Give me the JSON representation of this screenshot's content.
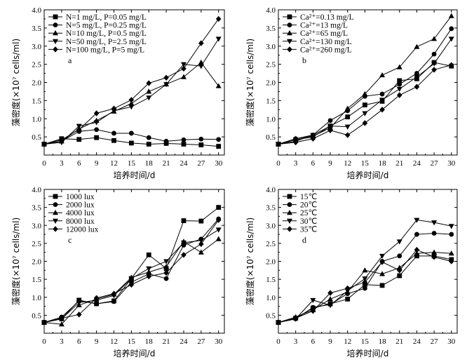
{
  "chart_data": [
    {
      "type": "line",
      "panel_label": "a",
      "xlabel": "培养时间/d",
      "ylabel": "藻密度(×10⁷ cells/ml)",
      "xlim": [
        0,
        31
      ],
      "ylim": [
        0,
        4.0
      ],
      "xticks": [
        "0",
        "3",
        "6",
        "9",
        "12",
        "15",
        "18",
        "21",
        "24",
        "27",
        "30"
      ],
      "yticks": [
        "0.5",
        "1.0",
        "1.5",
        "2.0",
        "2.5",
        "3.0",
        "3.5",
        "4.0"
      ],
      "legend_position": "top-left",
      "x": [
        0,
        3,
        6,
        9,
        12,
        15,
        18,
        21,
        24,
        27,
        30
      ],
      "series": [
        {
          "name": "N=1 mg/L, P=0.05 mg/L",
          "marker": "square",
          "values": [
            0.3,
            0.45,
            0.43,
            0.48,
            0.4,
            0.33,
            0.3,
            0.32,
            0.3,
            0.28,
            0.24
          ]
        },
        {
          "name": "N=5 mg/L, P=0.25 mg/L",
          "marker": "circle",
          "values": [
            0.3,
            0.38,
            0.65,
            0.7,
            0.6,
            0.6,
            0.48,
            0.38,
            0.42,
            0.44,
            0.43
          ]
        },
        {
          "name": "N=10 mg/L, P=0.5 mg/L",
          "marker": "triangle-up",
          "values": [
            0.3,
            0.38,
            0.72,
            0.95,
            1.2,
            1.42,
            1.75,
            1.95,
            2.15,
            2.55,
            1.9
          ]
        },
        {
          "name": "N=50 mg/L, P=2.5 mg/L",
          "marker": "triangle-down",
          "values": [
            0.3,
            0.35,
            0.8,
            0.9,
            1.22,
            1.33,
            1.58,
            1.95,
            2.5,
            2.45,
            3.2
          ]
        },
        {
          "name": "N=100 mg/L, P=5 mg/L",
          "marker": "diamond",
          "values": [
            0.3,
            0.42,
            0.7,
            1.15,
            1.28,
            1.52,
            1.98,
            2.13,
            2.38,
            3.08,
            3.75
          ]
        }
      ]
    },
    {
      "type": "line",
      "panel_label": "b",
      "xlabel": "培养时间/d",
      "ylabel": "藻密度(×10⁷ cells/ml)",
      "xlim": [
        0,
        31
      ],
      "ylim": [
        0,
        4.0
      ],
      "xticks": [
        "0",
        "3",
        "6",
        "9",
        "12",
        "15",
        "18",
        "21",
        "24",
        "27",
        "30"
      ],
      "yticks": [
        "0.5",
        "1.0",
        "1.5",
        "2.0",
        "2.5",
        "3.0",
        "3.5",
        "4.0"
      ],
      "legend_position": "top-left",
      "x": [
        0,
        3,
        6,
        9,
        12,
        15,
        18,
        21,
        24,
        27,
        30
      ],
      "series": [
        {
          "name": "Ca²⁺=0.13 mg/L",
          "marker": "square",
          "values": [
            0.3,
            0.42,
            0.5,
            0.8,
            1.05,
            1.38,
            1.48,
            2.05,
            2.1,
            2.55,
            2.45
          ]
        },
        {
          "name": "Ca²⁺=13 mg/L",
          "marker": "circle",
          "values": [
            0.3,
            0.45,
            0.55,
            0.95,
            1.22,
            1.62,
            1.68,
            1.95,
            2.25,
            2.78,
            3.48
          ]
        },
        {
          "name": "Ca²⁺=65 mg/L",
          "marker": "triangle-up",
          "values": [
            0.3,
            0.45,
            0.52,
            0.75,
            1.28,
            1.68,
            2.2,
            2.42,
            2.98,
            3.2,
            3.83
          ]
        },
        {
          "name": "Ca²⁺=130 mg/L",
          "marker": "triangle-down",
          "values": [
            0.3,
            0.38,
            0.55,
            0.8,
            0.78,
            1.15,
            1.52,
            1.82,
            2.15,
            2.52,
            3.2
          ]
        },
        {
          "name": "Ca²⁺=260 mg/L",
          "marker": "diamond",
          "values": [
            0.3,
            0.35,
            0.45,
            0.68,
            0.55,
            0.88,
            1.25,
            1.65,
            1.88,
            2.35,
            2.48
          ]
        }
      ]
    },
    {
      "type": "line",
      "panel_label": "c",
      "xlabel": "培养时间/d",
      "ylabel": "藻密度(×10⁷ cells/ml)",
      "xlim": [
        0,
        31
      ],
      "ylim": [
        0,
        4.0
      ],
      "xticks": [
        "0",
        "3",
        "6",
        "9",
        "12",
        "15",
        "18",
        "21",
        "24",
        "27",
        "30"
      ],
      "yticks": [
        "0.5",
        "1.0",
        "1.5",
        "2.0",
        "2.5",
        "3.0",
        "3.5",
        "4.0"
      ],
      "legend_position": "top-left",
      "x": [
        0,
        3,
        6,
        9,
        12,
        15,
        18,
        21,
        24,
        27,
        30
      ],
      "series": [
        {
          "name": "1000 lux",
          "marker": "square",
          "values": [
            0.3,
            0.4,
            0.92,
            0.82,
            0.9,
            1.52,
            2.18,
            1.8,
            3.13,
            3.12,
            3.5
          ]
        },
        {
          "name": "2000 lux",
          "marker": "circle",
          "values": [
            0.3,
            0.45,
            0.9,
            0.82,
            0.88,
            1.42,
            1.65,
            1.52,
            2.45,
            2.62,
            3.18
          ]
        },
        {
          "name": "4000 lux",
          "marker": "triangle-up",
          "values": [
            0.3,
            0.25,
            0.78,
            0.95,
            1.08,
            1.55,
            1.7,
            1.85,
            2.55,
            2.25,
            2.62
          ]
        },
        {
          "name": "8000 lux",
          "marker": "triangle-down",
          "values": [
            0.3,
            0.4,
            0.85,
            0.92,
            1.05,
            1.52,
            1.8,
            2.0,
            2.52,
            2.58,
            2.88
          ]
        },
        {
          "name": "12000 lux",
          "marker": "diamond",
          "values": [
            0.3,
            0.42,
            0.52,
            0.98,
            1.1,
            1.35,
            1.58,
            1.68,
            2.18,
            2.48,
            3.15
          ]
        }
      ]
    },
    {
      "type": "line",
      "panel_label": "d",
      "xlabel": "培养时间/d",
      "ylabel": "藻密度(×10⁷ cells/ml)",
      "xlim": [
        0,
        31
      ],
      "ylim": [
        0,
        4.0
      ],
      "xticks": [
        "0",
        "3",
        "6",
        "9",
        "12",
        "15",
        "18",
        "21",
        "24",
        "27",
        "30"
      ],
      "yticks": [
        "0.5",
        "1.0",
        "1.5",
        "2.0",
        "2.5",
        "3.0",
        "3.5",
        "4.0"
      ],
      "legend_position": "top-left",
      "x": [
        0,
        3,
        6,
        9,
        12,
        15,
        18,
        21,
        24,
        27,
        30
      ],
      "series": [
        {
          "name": "15℃",
          "marker": "square",
          "values": [
            0.3,
            0.42,
            0.7,
            0.82,
            0.95,
            1.35,
            1.33,
            1.6,
            2.15,
            2.15,
            2.05
          ]
        },
        {
          "name": "20℃",
          "marker": "circle",
          "values": [
            0.3,
            0.4,
            0.72,
            0.8,
            1.1,
            1.25,
            2.0,
            2.15,
            2.75,
            2.78,
            2.75
          ]
        },
        {
          "name": "25℃",
          "marker": "triangle-up",
          "values": [
            0.3,
            0.45,
            0.65,
            0.95,
            1.15,
            1.75,
            1.65,
            1.82,
            2.22,
            2.25,
            2.22
          ]
        },
        {
          "name": "30℃",
          "marker": "triangle-down",
          "values": [
            0.3,
            0.4,
            0.92,
            0.78,
            1.18,
            1.52,
            2.15,
            2.55,
            3.15,
            3.08,
            2.98
          ]
        },
        {
          "name": "35℃",
          "marker": "diamond",
          "values": [
            0.3,
            0.42,
            0.62,
            1.12,
            1.25,
            1.42,
            1.98,
            1.75,
            2.32,
            2.12,
            2.0
          ]
        }
      ]
    }
  ]
}
